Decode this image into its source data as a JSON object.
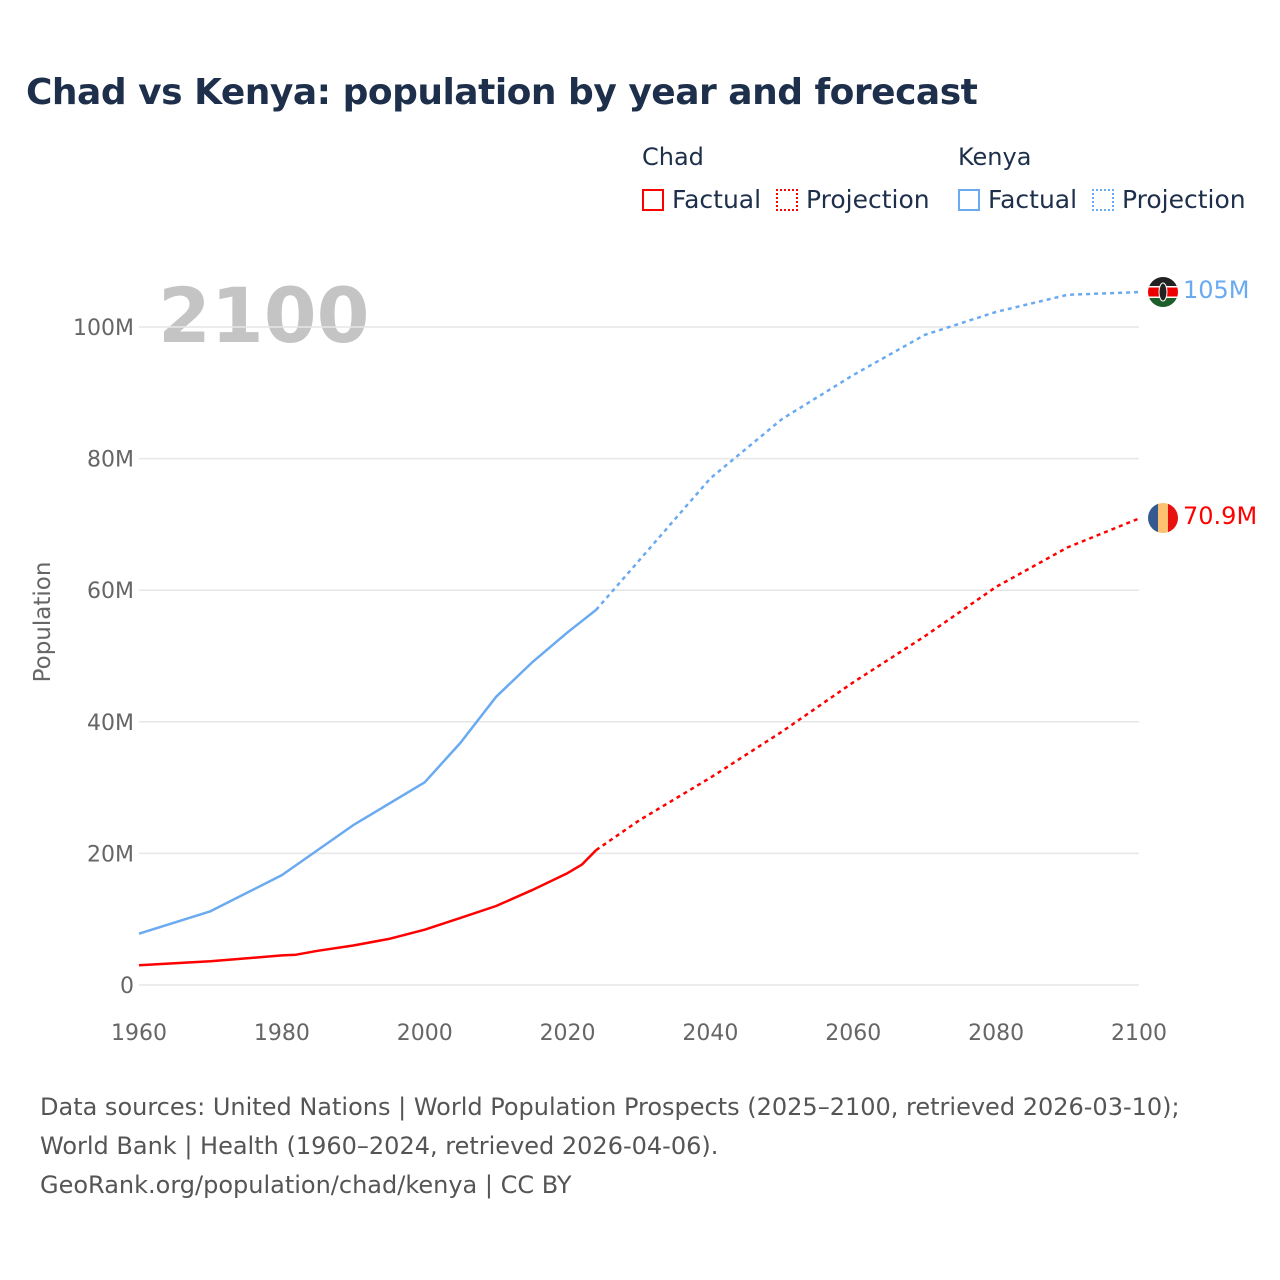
{
  "title": "Chad vs Kenya: population by year and forecast",
  "legend": {
    "groups": [
      {
        "name": "Chad",
        "color": "#ff0000",
        "factual": "Factual",
        "projection": "Projection"
      },
      {
        "name": "Kenya",
        "color": "#6aaaf0",
        "factual": "Factual",
        "projection": "Projection"
      }
    ]
  },
  "year_label": "2100",
  "end_labels": {
    "chad": "70.9M",
    "kenya": "105M"
  },
  "footer": {
    "sources": "Data sources: United Nations | World Population Prospects (2025–2100, retrieved 2026-03-10); World Bank | Health (1960–2024, retrieved 2026-04-06).",
    "credit": "GeoRank.org/population/chad/kenya | CC BY"
  },
  "chart_data": {
    "type": "line",
    "title": "Chad vs Kenya: population by year and forecast",
    "xlabel": "",
    "ylabel": "Population",
    "xlim": [
      1960,
      2100
    ],
    "ylim": [
      0,
      110
    ],
    "y_unit": "millions",
    "xticks": [
      "1960",
      "1980",
      "2000",
      "2020",
      "2040",
      "2060",
      "2080",
      "2100"
    ],
    "yticks": [
      {
        "v": 0,
        "label": "0"
      },
      {
        "v": 20,
        "label": "20M"
      },
      {
        "v": 40,
        "label": "40M"
      },
      {
        "v": 60,
        "label": "60M"
      },
      {
        "v": 80,
        "label": "80M"
      },
      {
        "v": 100,
        "label": "100M"
      }
    ],
    "grid": true,
    "legend_position": "top-right",
    "series": [
      {
        "name": "Chad",
        "color": "#ff0000",
        "factual": {
          "x": [
            1960,
            1970,
            1980,
            1982,
            1985,
            1990,
            1995,
            2000,
            2005,
            2010,
            2015,
            2020,
            2022,
            2024
          ],
          "y": [
            3.0,
            3.6,
            4.5,
            4.6,
            5.2,
            6.0,
            7.0,
            8.4,
            10.2,
            12.0,
            14.4,
            17.0,
            18.3,
            20.5
          ]
        },
        "projection": {
          "x": [
            2024,
            2030,
            2040,
            2050,
            2060,
            2070,
            2080,
            2090,
            2100
          ],
          "y": [
            20.5,
            25,
            31.5,
            38.5,
            46,
            53,
            60.5,
            66.5,
            70.9
          ]
        }
      },
      {
        "name": "Kenya",
        "color": "#6aaaf0",
        "factual": {
          "x": [
            1960,
            1970,
            1980,
            1990,
            2000,
            2005,
            2010,
            2015,
            2020,
            2024
          ],
          "y": [
            7.8,
            11.2,
            16.7,
            24.3,
            30.8,
            36.8,
            43.8,
            49.0,
            53.6,
            57.0
          ]
        },
        "projection": {
          "x": [
            2024,
            2030,
            2040,
            2050,
            2060,
            2070,
            2080,
            2090,
            2100
          ],
          "y": [
            57.0,
            64.5,
            77.0,
            86.0,
            92.7,
            98.8,
            102.3,
            104.9,
            105.3
          ]
        }
      }
    ]
  }
}
